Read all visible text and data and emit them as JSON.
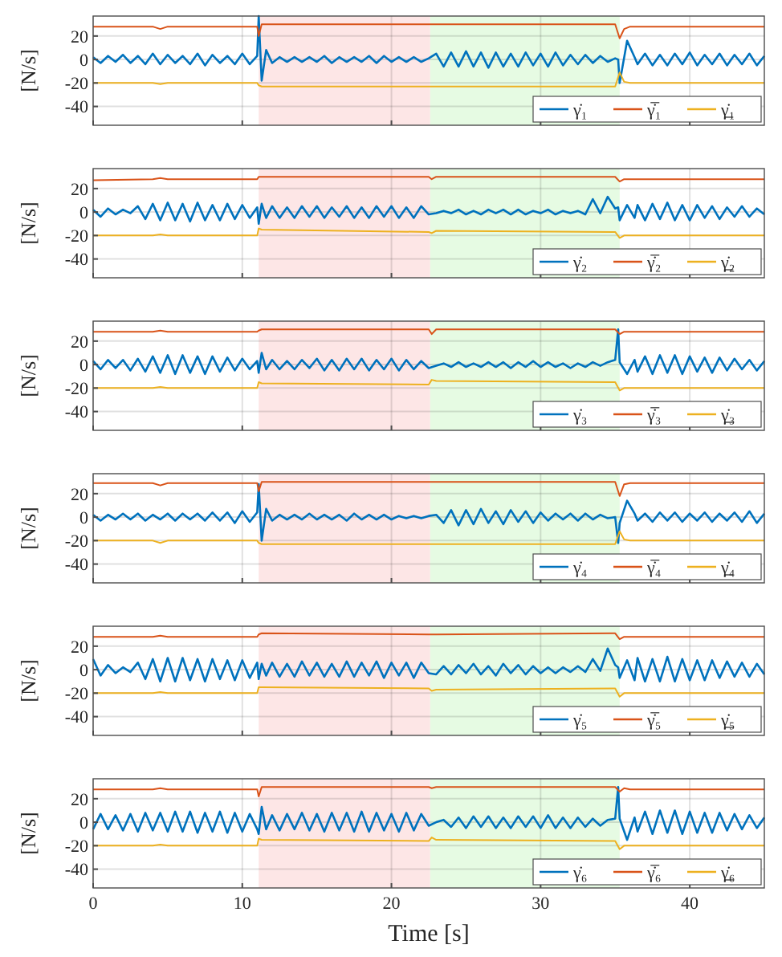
{
  "chart_data": [
    {
      "type": "line",
      "ylabel": "[N/s]",
      "xlim": [
        0,
        45
      ],
      "ylim": [
        -56,
        37
      ],
      "xticks": [
        0,
        10,
        20,
        30,
        40
      ],
      "yticks": [
        -40,
        -20,
        0,
        20
      ],
      "grid": true,
      "legend": "bottom right",
      "tick_labels": "y",
      "bands": [
        {
          "axis": "x",
          "from": 11.1,
          "to": 22.6,
          "color": "#fde6e6"
        },
        {
          "axis": "x",
          "from": 22.6,
          "to": 35.3,
          "color": "#e6fbe3"
        }
      ],
      "series": [
        {
          "name": "γ̇₁",
          "color": "#0072bd",
          "x": [
            0,
            0.5,
            1,
            1.5,
            2,
            2.5,
            3,
            3.5,
            4,
            4.5,
            5,
            5.5,
            6,
            6.5,
            7,
            7.5,
            8,
            8.5,
            9,
            9.5,
            10,
            10.5,
            11,
            11.1,
            11.3,
            11.6,
            12,
            12.5,
            13,
            13.5,
            14,
            14.5,
            15,
            15.5,
            16,
            16.5,
            17,
            17.5,
            18,
            18.5,
            19,
            19.5,
            20,
            20.5,
            21,
            21.5,
            22,
            22.5,
            23,
            23.5,
            24,
            24.5,
            25,
            25.5,
            26,
            26.5,
            27,
            27.5,
            28,
            28.5,
            29,
            29.5,
            30,
            30.5,
            31,
            31.5,
            32,
            32.5,
            33,
            33.5,
            34,
            34.5,
            35,
            35.2,
            35.3,
            35.8,
            36.3,
            36.5,
            37,
            37.5,
            38,
            38.5,
            39,
            39.5,
            40,
            40.5,
            41,
            41.5,
            42,
            42.5,
            43,
            43.5,
            44,
            44.5,
            45
          ],
          "values": [
            2,
            -3,
            3,
            -2,
            4,
            -3,
            3,
            -4,
            5,
            -4,
            4,
            -3,
            3,
            -4,
            5,
            -5,
            4,
            -3,
            3,
            -4,
            5,
            -4,
            3,
            37,
            -18,
            8,
            -3,
            2,
            -2,
            2,
            -2,
            2,
            -2,
            3,
            -3,
            2,
            -2,
            2,
            -2,
            3,
            -3,
            3,
            -2,
            2,
            -2,
            2,
            -2,
            1,
            5,
            -6,
            6,
            -6,
            7,
            -6,
            6,
            -7,
            6,
            -6,
            5,
            -6,
            6,
            -5,
            5,
            -6,
            6,
            -5,
            4,
            -4,
            4,
            -3,
            3,
            -2,
            1,
            0,
            -20,
            16,
            2,
            -4,
            5,
            -5,
            4,
            -5,
            5,
            -4,
            6,
            -5,
            4,
            -4,
            5,
            -5,
            4,
            -4,
            5,
            -5,
            3
          ]
        },
        {
          "name": "γ̇̅₁",
          "color": "#d95319",
          "x": [
            0,
            4,
            4.5,
            5,
            11,
            11.1,
            11.3,
            22.5,
            22.7,
            23,
            35,
            35.3,
            35.6,
            36,
            45
          ],
          "values": [
            28,
            28,
            26,
            28,
            28,
            20,
            30,
            30,
            30,
            30,
            30,
            18,
            26,
            28,
            28
          ]
        },
        {
          "name": "γ̲̇₁",
          "color": "#edb120",
          "x": [
            0,
            4,
            4.5,
            5,
            11,
            11.1,
            11.3,
            22.5,
            22.7,
            23,
            35,
            35.3,
            35.6,
            36,
            45
          ],
          "values": [
            -20,
            -20,
            -21,
            -20,
            -20,
            -22,
            -23,
            -23,
            -23,
            -23,
            -23,
            -11,
            -19,
            -20,
            -20
          ]
        }
      ]
    },
    {
      "type": "line",
      "ylabel": "[N/s]",
      "xlim": [
        0,
        45
      ],
      "ylim": [
        -56,
        37
      ],
      "xticks": [
        0,
        10,
        20,
        30,
        40
      ],
      "yticks": [
        -40,
        -20,
        0,
        20
      ],
      "grid": true,
      "legend": "bottom right",
      "tick_labels": "y",
      "bands": [
        {
          "axis": "x",
          "from": 11.1,
          "to": 22.6,
          "color": "#fde6e6"
        },
        {
          "axis": "x",
          "from": 22.6,
          "to": 35.3,
          "color": "#e6fbe3"
        }
      ],
      "series": [
        {
          "name": "γ̇₂",
          "color": "#0072bd",
          "x": [
            0,
            0.5,
            1,
            1.5,
            2,
            2.5,
            3,
            3.5,
            4,
            4.5,
            5,
            5.5,
            6,
            6.5,
            7,
            7.5,
            8,
            8.5,
            9,
            9.5,
            10,
            10.5,
            11,
            11.1,
            11.3,
            11.6,
            12,
            12.5,
            13,
            13.5,
            14,
            14.5,
            15,
            15.5,
            16,
            16.5,
            17,
            17.5,
            18,
            18.5,
            19,
            19.5,
            20,
            20.5,
            21,
            21.5,
            22,
            22.5,
            23,
            23.5,
            24,
            24.5,
            25,
            25.5,
            26,
            26.5,
            27,
            27.5,
            28,
            28.5,
            29,
            29.5,
            30,
            30.5,
            31,
            31.5,
            32,
            32.5,
            33,
            33.5,
            34,
            34.5,
            35,
            35.2,
            35.3,
            35.8,
            36.3,
            36.5,
            37,
            37.5,
            38,
            38.5,
            39,
            39.5,
            40,
            40.5,
            41,
            41.5,
            42,
            42.5,
            43,
            43.5,
            44,
            44.5,
            45
          ],
          "values": [
            2,
            -4,
            3,
            -2,
            2,
            -1,
            5,
            -6,
            7,
            -7,
            8,
            -7,
            7,
            -8,
            8,
            -7,
            6,
            -7,
            7,
            -6,
            6,
            -5,
            4,
            -10,
            7,
            -5,
            5,
            -5,
            4,
            -5,
            5,
            -4,
            5,
            -5,
            4,
            -4,
            5,
            -5,
            4,
            -5,
            5,
            -4,
            5,
            -5,
            4,
            -5,
            5,
            -2,
            -1,
            1,
            -1,
            2,
            -2,
            1,
            -2,
            2,
            -1,
            2,
            -2,
            2,
            -2,
            1,
            -1,
            2,
            -2,
            1,
            -1,
            1,
            -2,
            11,
            -1,
            13,
            3,
            4,
            -7,
            6,
            -5,
            6,
            -7,
            7,
            -6,
            8,
            -7,
            6,
            -7,
            6,
            -5,
            5,
            -6,
            4,
            -4,
            5,
            -4,
            3,
            -2
          ]
        },
        {
          "name": "γ̇̅₂",
          "color": "#d95319",
          "x": [
            0,
            4,
            4.5,
            5,
            11,
            11.1,
            11.3,
            22.5,
            22.7,
            23,
            35,
            35.3,
            35.6,
            36,
            45
          ],
          "values": [
            27,
            28,
            29,
            28,
            28,
            30,
            30,
            30,
            28,
            30,
            30,
            26,
            28,
            28,
            28
          ]
        },
        {
          "name": "γ̲̇₂",
          "color": "#edb120",
          "x": [
            0,
            4,
            4.5,
            5,
            11,
            11.1,
            11.3,
            22.5,
            22.7,
            23,
            35,
            35.3,
            35.6,
            36,
            45
          ],
          "values": [
            -20,
            -20,
            -19,
            -20,
            -20,
            -14,
            -15,
            -17,
            -18,
            -16,
            -17,
            -22,
            -20,
            -20,
            -20
          ]
        }
      ]
    },
    {
      "type": "line",
      "ylabel": "[N/s]",
      "xlim": [
        0,
        45
      ],
      "ylim": [
        -56,
        37
      ],
      "xticks": [
        0,
        10,
        20,
        30,
        40
      ],
      "yticks": [
        -40,
        -20,
        0,
        20
      ],
      "grid": true,
      "legend": "bottom right",
      "tick_labels": "y",
      "bands": [
        {
          "axis": "x",
          "from": 11.1,
          "to": 22.6,
          "color": "#fde6e6"
        },
        {
          "axis": "x",
          "from": 22.6,
          "to": 35.3,
          "color": "#e6fbe3"
        }
      ],
      "series": [
        {
          "name": "γ̇₃",
          "color": "#0072bd",
          "x": [
            0,
            0.5,
            1,
            1.5,
            2,
            2.5,
            3,
            3.5,
            4,
            4.5,
            5,
            5.5,
            6,
            6.5,
            7,
            7.5,
            8,
            8.5,
            9,
            9.5,
            10,
            10.5,
            11,
            11.1,
            11.3,
            11.6,
            12,
            12.5,
            13,
            13.5,
            14,
            14.5,
            15,
            15.5,
            16,
            16.5,
            17,
            17.5,
            18,
            18.5,
            19,
            19.5,
            20,
            20.5,
            21,
            21.5,
            22,
            22.5,
            23,
            23.5,
            24,
            24.5,
            25,
            25.5,
            26,
            26.5,
            27,
            27.5,
            28,
            28.5,
            29,
            29.5,
            30,
            30.5,
            31,
            31.5,
            32,
            32.5,
            33,
            33.5,
            34,
            34.5,
            35,
            35.2,
            35.3,
            35.8,
            36.3,
            36.5,
            37,
            37.5,
            38,
            38.5,
            39,
            39.5,
            40,
            40.5,
            41,
            41.5,
            42,
            42.5,
            43,
            43.5,
            44,
            44.5,
            45
          ],
          "values": [
            3,
            -4,
            4,
            -3,
            4,
            -5,
            5,
            -6,
            7,
            -7,
            8,
            -8,
            8,
            -7,
            7,
            -8,
            7,
            -6,
            6,
            -5,
            5,
            -4,
            3,
            -7,
            10,
            -4,
            4,
            -4,
            3,
            -4,
            4,
            -3,
            5,
            -5,
            4,
            -5,
            5,
            -4,
            5,
            -5,
            4,
            -4,
            5,
            -5,
            4,
            -4,
            3,
            -3,
            -1,
            1,
            -2,
            2,
            -2,
            1,
            -2,
            2,
            -2,
            2,
            -3,
            2,
            -2,
            3,
            -2,
            2,
            -2,
            1,
            -3,
            1,
            -2,
            2,
            -1,
            2,
            4,
            30,
            2,
            -8,
            4,
            -6,
            7,
            -8,
            8,
            -7,
            8,
            -8,
            7,
            -6,
            6,
            -7,
            6,
            -5,
            5,
            -4,
            4,
            -5,
            3
          ]
        },
        {
          "name": "γ̇̅₃",
          "color": "#d95319",
          "x": [
            0,
            4,
            4.5,
            5,
            11,
            11.1,
            11.3,
            22.5,
            22.7,
            23,
            35,
            35.3,
            35.6,
            36,
            45
          ],
          "values": [
            28,
            28,
            29,
            28,
            28,
            29,
            30,
            30,
            26,
            30,
            30,
            26,
            28,
            28,
            28
          ]
        },
        {
          "name": "γ̲̇₃",
          "color": "#edb120",
          "x": [
            0,
            4,
            4.5,
            5,
            11,
            11.1,
            11.3,
            22.5,
            22.7,
            23,
            35,
            35.3,
            35.6,
            36,
            45
          ],
          "values": [
            -20,
            -20,
            -19,
            -20,
            -20,
            -15,
            -16,
            -17,
            -13,
            -14,
            -15,
            -22,
            -20,
            -20,
            -20
          ]
        }
      ]
    },
    {
      "type": "line",
      "ylabel": "[N/s]",
      "xlim": [
        0,
        45
      ],
      "ylim": [
        -56,
        37
      ],
      "xticks": [
        0,
        10,
        20,
        30,
        40
      ],
      "yticks": [
        -40,
        -20,
        0,
        20
      ],
      "grid": true,
      "legend": "bottom right",
      "tick_labels": "y",
      "bands": [
        {
          "axis": "x",
          "from": 11.1,
          "to": 22.6,
          "color": "#fde6e6"
        },
        {
          "axis": "x",
          "from": 22.6,
          "to": 35.3,
          "color": "#e6fbe3"
        }
      ],
      "series": [
        {
          "name": "γ̇₄",
          "color": "#0072bd",
          "x": [
            0,
            0.5,
            1,
            1.5,
            2,
            2.5,
            3,
            3.5,
            4,
            4.5,
            5,
            5.5,
            6,
            6.5,
            7,
            7.5,
            8,
            8.5,
            9,
            9.5,
            10,
            10.5,
            11,
            11.1,
            11.3,
            11.6,
            12,
            12.5,
            13,
            13.5,
            14,
            14.5,
            15,
            15.5,
            16,
            16.5,
            17,
            17.5,
            18,
            18.5,
            19,
            19.5,
            20,
            20.5,
            21,
            21.5,
            22,
            22.5,
            23,
            23.5,
            24,
            24.5,
            25,
            25.5,
            26,
            26.5,
            27,
            27.5,
            28,
            28.5,
            29,
            29.5,
            30,
            30.5,
            31,
            31.5,
            32,
            32.5,
            33,
            33.5,
            34,
            34.5,
            35,
            35.2,
            35.3,
            35.8,
            36.3,
            36.5,
            37,
            37.5,
            38,
            38.5,
            39,
            39.5,
            40,
            40.5,
            41,
            41.5,
            42,
            42.5,
            43,
            43.5,
            44,
            44.5,
            45
          ],
          "values": [
            2,
            -3,
            2,
            -2,
            3,
            -2,
            3,
            -3,
            2,
            -2,
            3,
            -3,
            3,
            -2,
            3,
            -3,
            4,
            -3,
            4,
            -5,
            5,
            -4,
            4,
            28,
            -20,
            7,
            -3,
            2,
            -2,
            2,
            -2,
            3,
            -2,
            2,
            -2,
            2,
            -3,
            3,
            -2,
            2,
            -2,
            2,
            -2,
            1,
            -1,
            1,
            -1,
            1,
            2,
            -5,
            6,
            -7,
            6,
            -6,
            7,
            -5,
            5,
            -6,
            6,
            -4,
            5,
            -5,
            4,
            -3,
            3,
            -2,
            3,
            -3,
            3,
            -2,
            2,
            -1,
            0,
            -22,
            -5,
            14,
            3,
            -3,
            3,
            -4,
            4,
            -3,
            4,
            -4,
            3,
            -3,
            4,
            -4,
            3,
            -3,
            4,
            -4,
            5,
            -5,
            3
          ]
        },
        {
          "name": "γ̇̅₄",
          "color": "#d95319",
          "x": [
            0,
            4,
            4.5,
            5,
            11,
            11.1,
            11.3,
            22.5,
            22.7,
            23,
            35,
            35.3,
            35.6,
            36,
            45
          ],
          "values": [
            29,
            29,
            27,
            29,
            29,
            22,
            30,
            30,
            30,
            30,
            30,
            18,
            28,
            29,
            29
          ]
        },
        {
          "name": "γ̲̇₄",
          "color": "#edb120",
          "x": [
            0,
            4,
            4.5,
            5,
            11,
            11.1,
            11.3,
            22.5,
            22.7,
            23,
            35,
            35.3,
            35.6,
            36,
            45
          ],
          "values": [
            -20,
            -20,
            -22,
            -20,
            -20,
            -22,
            -23,
            -23,
            -23,
            -23,
            -23,
            -12,
            -19,
            -20,
            -20
          ]
        }
      ]
    },
    {
      "type": "line",
      "ylabel": "[N/s]",
      "xlim": [
        0,
        45
      ],
      "ylim": [
        -56,
        37
      ],
      "xticks": [
        0,
        10,
        20,
        30,
        40
      ],
      "yticks": [
        -40,
        -20,
        0,
        20
      ],
      "grid": true,
      "legend": "bottom right",
      "tick_labels": "y",
      "bands": [
        {
          "axis": "x",
          "from": 11.1,
          "to": 22.6,
          "color": "#fde6e6"
        },
        {
          "axis": "x",
          "from": 22.6,
          "to": 35.3,
          "color": "#e6fbe3"
        }
      ],
      "series": [
        {
          "name": "γ̇₅",
          "color": "#0072bd",
          "x": [
            0,
            0.5,
            1,
            1.5,
            2,
            2.5,
            3,
            3.5,
            4,
            4.5,
            5,
            5.5,
            6,
            6.5,
            7,
            7.5,
            8,
            8.5,
            9,
            9.5,
            10,
            10.5,
            11,
            11.1,
            11.3,
            11.6,
            12,
            12.5,
            13,
            13.5,
            14,
            14.5,
            15,
            15.5,
            16,
            16.5,
            17,
            17.5,
            18,
            18.5,
            19,
            19.5,
            20,
            20.5,
            21,
            21.5,
            22,
            22.5,
            23,
            23.5,
            24,
            24.5,
            25,
            25.5,
            26,
            26.5,
            27,
            27.5,
            28,
            28.5,
            29,
            29.5,
            30,
            30.5,
            31,
            31.5,
            32,
            32.5,
            33,
            33.5,
            34,
            34.5,
            35,
            35.2,
            35.3,
            35.8,
            36.3,
            36.5,
            37,
            37.5,
            38,
            38.5,
            39,
            39.5,
            40,
            40.5,
            41,
            41.5,
            42,
            42.5,
            43,
            43.5,
            44,
            44.5,
            45
          ],
          "values": [
            9,
            -5,
            4,
            -3,
            2,
            -2,
            6,
            -8,
            9,
            -10,
            10,
            -10,
            10,
            -9,
            9,
            -10,
            9,
            -8,
            8,
            -9,
            8,
            -7,
            6,
            -8,
            5,
            -5,
            6,
            -6,
            5,
            -6,
            7,
            -5,
            6,
            -6,
            5,
            -6,
            7,
            -6,
            6,
            -5,
            7,
            -7,
            6,
            -5,
            6,
            -7,
            6,
            -3,
            -4,
            3,
            -4,
            4,
            -3,
            5,
            -4,
            3,
            -5,
            5,
            -3,
            4,
            -4,
            3,
            -3,
            2,
            -3,
            2,
            -2,
            3,
            -2,
            9,
            -1,
            18,
            4,
            2,
            -7,
            8,
            -9,
            10,
            -10,
            9,
            -10,
            11,
            -10,
            9,
            -9,
            8,
            -9,
            8,
            -7,
            7,
            -6,
            6,
            -6,
            5,
            -4
          ]
        },
        {
          "name": "γ̇̅₅",
          "color": "#d95319",
          "x": [
            0,
            4,
            4.5,
            5,
            11,
            11.1,
            11.3,
            22.5,
            22.7,
            23,
            35,
            35.3,
            35.6,
            36,
            45
          ],
          "values": [
            28,
            28,
            29,
            28,
            28,
            30,
            31,
            30,
            30,
            30,
            31,
            26,
            28,
            28,
            28
          ]
        },
        {
          "name": "γ̲̇₅",
          "color": "#edb120",
          "x": [
            0,
            4,
            4.5,
            5,
            11,
            11.1,
            11.3,
            22.5,
            22.7,
            23,
            35,
            35.3,
            35.6,
            36,
            45
          ],
          "values": [
            -20,
            -20,
            -19,
            -20,
            -20,
            -15,
            -15,
            -16,
            -18,
            -17,
            -16,
            -23,
            -20,
            -20,
            -20
          ]
        }
      ]
    },
    {
      "type": "line",
      "ylabel": "[N/s]",
      "xlabel": "Time [s]",
      "xlim": [
        0,
        45
      ],
      "ylim": [
        -56,
        37
      ],
      "xticks": [
        0,
        10,
        20,
        30,
        40
      ],
      "yticks": [
        -40,
        -20,
        0,
        20
      ],
      "grid": true,
      "legend": "bottom right",
      "bands": [
        {
          "axis": "x",
          "from": 11.1,
          "to": 22.6,
          "color": "#fde6e6"
        },
        {
          "axis": "x",
          "from": 22.6,
          "to": 35.3,
          "color": "#e6fbe3"
        }
      ],
      "series": [
        {
          "name": "γ̇₆",
          "color": "#0072bd",
          "x": [
            0,
            0.5,
            1,
            1.5,
            2,
            2.5,
            3,
            3.5,
            4,
            4.5,
            5,
            5.5,
            6,
            6.5,
            7,
            7.5,
            8,
            8.5,
            9,
            9.5,
            10,
            10.5,
            11,
            11.1,
            11.3,
            11.6,
            12,
            12.5,
            13,
            13.5,
            14,
            14.5,
            15,
            15.5,
            16,
            16.5,
            17,
            17.5,
            18,
            18.5,
            19,
            19.5,
            20,
            20.5,
            21,
            21.5,
            22,
            22.5,
            23,
            23.5,
            24,
            24.5,
            25,
            25.5,
            26,
            26.5,
            27,
            27.5,
            28,
            28.5,
            29,
            29.5,
            30,
            30.5,
            31,
            31.5,
            32,
            32.5,
            33,
            33.5,
            34,
            34.5,
            35,
            35.2,
            35.3,
            35.8,
            36.3,
            36.5,
            37,
            37.5,
            38,
            38.5,
            39,
            39.5,
            40,
            40.5,
            41,
            41.5,
            42,
            42.5,
            43,
            43.5,
            44,
            44.5,
            45
          ],
          "values": [
            -6,
            7,
            -6,
            6,
            -7,
            7,
            -8,
            8,
            -7,
            8,
            -8,
            9,
            -8,
            9,
            -9,
            8,
            -8,
            9,
            -9,
            8,
            -8,
            7,
            -6,
            -10,
            13,
            -6,
            6,
            -7,
            7,
            -6,
            8,
            -7,
            7,
            -8,
            8,
            -7,
            8,
            -8,
            9,
            -8,
            8,
            -7,
            7,
            -8,
            8,
            -7,
            7,
            -3,
            0,
            2,
            -4,
            4,
            -5,
            5,
            -4,
            5,
            -5,
            4,
            -5,
            5,
            -4,
            5,
            -5,
            6,
            -5,
            4,
            -5,
            4,
            -4,
            3,
            -3,
            2,
            3,
            30,
            3,
            -15,
            4,
            -8,
            9,
            -10,
            10,
            -9,
            10,
            -10,
            9,
            -9,
            8,
            -9,
            8,
            -7,
            7,
            -6,
            6,
            -5,
            4
          ]
        },
        {
          "name": "γ̇̅₆",
          "color": "#d95319",
          "x": [
            0,
            4,
            4.5,
            5,
            11,
            11.1,
            11.3,
            22.5,
            22.7,
            23,
            35,
            35.3,
            35.6,
            36,
            45
          ],
          "values": [
            28,
            28,
            29,
            28,
            28,
            22,
            30,
            30,
            29,
            30,
            30,
            26,
            29,
            28,
            28
          ]
        },
        {
          "name": "γ̲̇₆",
          "color": "#edb120",
          "x": [
            0,
            4,
            4.5,
            5,
            11,
            11.1,
            11.3,
            22.5,
            22.7,
            23,
            35,
            35.3,
            35.6,
            36,
            45
          ],
          "values": [
            -20,
            -20,
            -19,
            -20,
            -20,
            -14,
            -15,
            -16,
            -13,
            -15,
            -16,
            -23,
            -20,
            -20,
            -20
          ]
        }
      ]
    }
  ]
}
